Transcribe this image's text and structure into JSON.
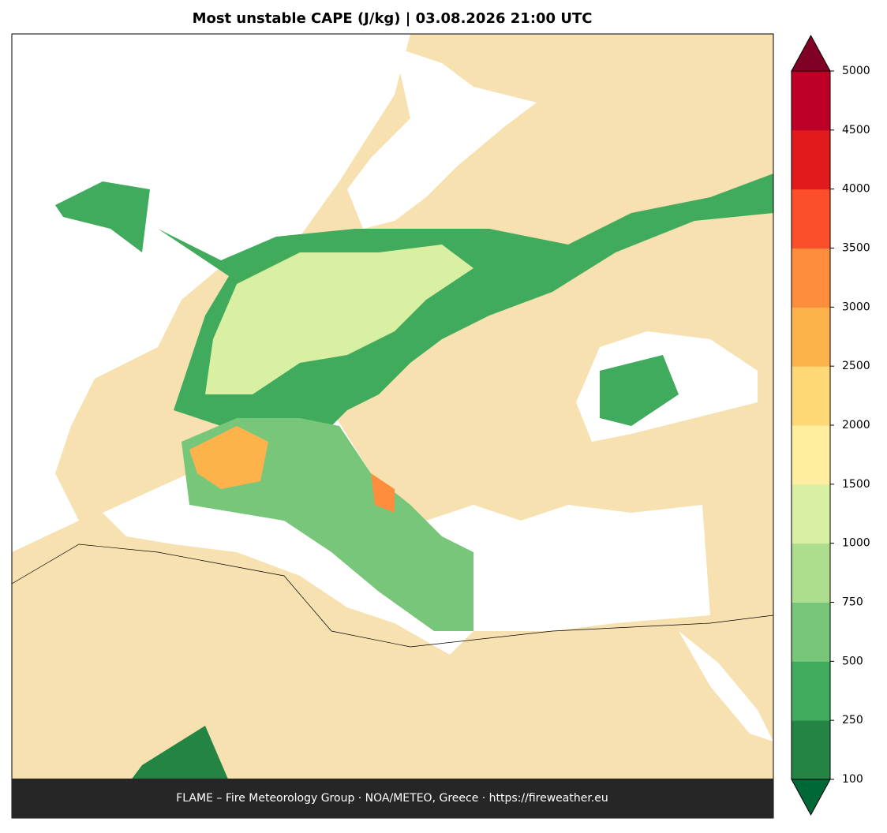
{
  "title": "Most unstable CAPE (J/kg)  |  03.08.2026 21:00 UTC",
  "footer": "FLAME – Fire Meteorology Group · NOA/METEO, Greece · https://fireweather.eu",
  "colorbar": {
    "levels": [
      100,
      250,
      500,
      750,
      1000,
      1500,
      2000,
      2500,
      3000,
      3500,
      4000,
      4500,
      5000
    ],
    "colors": [
      "#238443",
      "#41ab5d",
      "#78c679",
      "#addd8e",
      "#d9f0a3",
      "#ffeda0",
      "#fed976",
      "#feb24c",
      "#fd8d3c",
      "#fc4e2a",
      "#e31a1c",
      "#bd0026"
    ],
    "under_color": "#006837",
    "over_color": "#800026"
  }
}
